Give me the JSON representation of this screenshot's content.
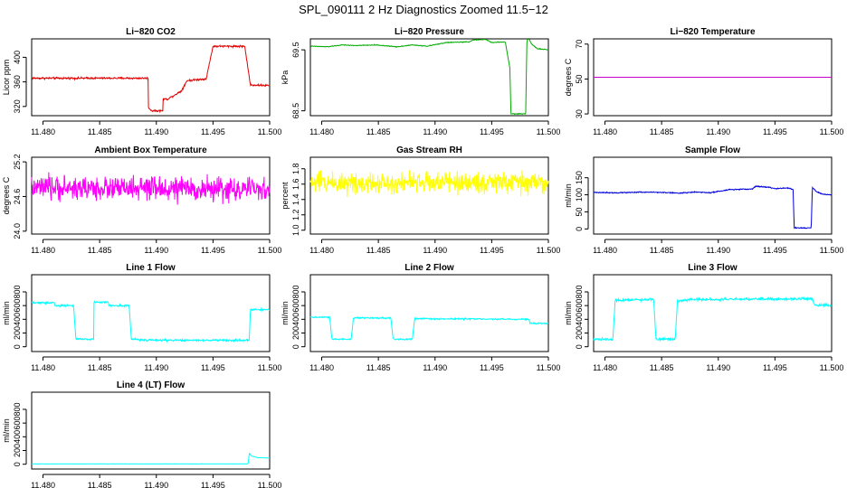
{
  "title": "SPL_090111  2 Hz Diagnostics Zoomed 11.5−12",
  "chart_data": [
    {
      "type": "line",
      "title": "Li−820 CO2",
      "ylabel": "Licor ppm",
      "xlim": [
        11.479,
        11.5
      ],
      "ylim": [
        305,
        430
      ],
      "x_ticks": [
        11.48,
        11.485,
        11.49,
        11.495,
        11.5
      ],
      "x_tick_labels": [
        "11.480",
        "11.485",
        "11.490",
        "11.495",
        "11.500"
      ],
      "y_ticks": [
        320,
        360,
        400
      ],
      "y_tick_labels": [
        "320",
        "360",
        "400"
      ],
      "color": "#e00000",
      "series": [
        {
          "x": [
            11.479,
            11.4893,
            11.4893,
            11.4896,
            11.4896,
            11.4906,
            11.4906,
            11.491,
            11.491,
            11.4922,
            11.4922,
            11.4927,
            11.4927,
            11.4944,
            11.4944,
            11.495,
            11.495,
            11.4978,
            11.4978,
            11.4983,
            11.4983,
            11.5
          ],
          "y": [
            366,
            366,
            318,
            313,
            313,
            313,
            332,
            332,
            332,
            345,
            345,
            362,
            362,
            365,
            365,
            418,
            418,
            418,
            418,
            355,
            355,
            354
          ]
        }
      ],
      "noise": 1.5
    },
    {
      "type": "line",
      "title": "Li−820 Pressure",
      "ylabel": "kPa",
      "xlim": [
        11.479,
        11.5
      ],
      "ylim": [
        68.42,
        69.68
      ],
      "x_ticks": [
        11.48,
        11.485,
        11.49,
        11.495,
        11.5
      ],
      "x_tick_labels": [
        "11.480",
        "11.485",
        "11.490",
        "11.495",
        "11.500"
      ],
      "y_ticks": [
        68.5,
        69.5
      ],
      "y_tick_labels": [
        "68.5",
        "69.5"
      ],
      "color": "#00aa00",
      "series": [
        {
          "x": [
            11.479,
            11.4805,
            11.4818,
            11.483,
            11.4848,
            11.4866,
            11.488,
            11.4893,
            11.491,
            11.493,
            11.4933,
            11.4945,
            11.495,
            11.4962,
            11.4966,
            11.4967,
            11.497,
            11.498,
            11.4981,
            11.4982,
            11.4985,
            11.499,
            11.5
          ],
          "y": [
            69.56,
            69.55,
            69.58,
            69.57,
            69.58,
            69.55,
            69.58,
            69.56,
            69.62,
            69.63,
            69.66,
            69.67,
            69.62,
            69.63,
            69.2,
            68.45,
            68.45,
            68.45,
            69.62,
            69.72,
            69.6,
            69.52,
            69.5
          ]
        }
      ],
      "noise": 0.006
    },
    {
      "type": "line",
      "title": "Li−820 Temperature",
      "ylabel": "degrees C",
      "xlim": [
        11.479,
        11.5
      ],
      "ylim": [
        29,
        73
      ],
      "x_ticks": [
        11.48,
        11.485,
        11.49,
        11.495,
        11.5
      ],
      "x_tick_labels": [
        "11.480",
        "11.485",
        "11.490",
        "11.495",
        "11.500"
      ],
      "y_ticks": [
        30,
        50,
        70
      ],
      "y_tick_labels": [
        "30",
        "50",
        "70"
      ],
      "color": "#cc00cc",
      "series": [
        {
          "x": [
            11.479,
            11.5
          ],
          "y": [
            51,
            51
          ]
        }
      ],
      "noise": 0
    },
    {
      "type": "line",
      "title": "Ambient Box Temperature",
      "ylabel": "degrees C",
      "xlim": [
        11.479,
        11.5
      ],
      "ylim": [
        23.95,
        25.28
      ],
      "x_ticks": [
        11.48,
        11.485,
        11.49,
        11.495,
        11.5
      ],
      "x_tick_labels": [
        "11.480",
        "11.485",
        "11.490",
        "11.495",
        "11.500"
      ],
      "y_ticks": [
        24.0,
        24.6,
        25.2
      ],
      "y_tick_labels": [
        "24.0",
        "24.6",
        "25.2"
      ],
      "color": "#ff00ff",
      "series": [
        {
          "x": [
            11.479,
            11.5
          ],
          "y": [
            24.75,
            24.72
          ]
        }
      ],
      "noise": 0.2
    },
    {
      "type": "line",
      "title": "Gas Stream RH",
      "ylabel": "percent",
      "xlim": [
        11.479,
        11.5
      ],
      "ylim": [
        0.95,
        1.95
      ],
      "x_ticks": [
        11.48,
        11.485,
        11.49,
        11.495,
        11.5
      ],
      "x_tick_labels": [
        "11.480",
        "11.485",
        "11.490",
        "11.495",
        "11.500"
      ],
      "y_ticks": [
        1.0,
        1.2,
        1.4,
        1.6,
        1.8
      ],
      "y_tick_labels": [
        "1.0",
        "1.2",
        "1.4",
        "1.6",
        "1.8"
      ],
      "color": "#ffff00",
      "series": [
        {
          "x": [
            11.479,
            11.5
          ],
          "y": [
            1.62,
            1.62
          ]
        }
      ],
      "noise": 0.14
    },
    {
      "type": "line",
      "title": "Sample Flow",
      "ylabel": "ml/min",
      "xlim": [
        11.479,
        11.5
      ],
      "ylim": [
        -15,
        210
      ],
      "x_ticks": [
        11.48,
        11.485,
        11.49,
        11.495,
        11.5
      ],
      "x_tick_labels": [
        "11.480",
        "11.485",
        "11.490",
        "11.495",
        "11.500"
      ],
      "y_ticks": [
        0,
        50,
        100,
        150
      ],
      "y_tick_labels": [
        "0",
        "50",
        "100",
        "150"
      ],
      "color": "#0000dd",
      "series": [
        {
          "x": [
            11.479,
            11.4812,
            11.4832,
            11.485,
            11.4866,
            11.488,
            11.4893,
            11.491,
            11.493,
            11.4933,
            11.4945,
            11.495,
            11.4962,
            11.4966,
            11.4967,
            11.4982,
            11.4983,
            11.4987,
            11.4992,
            11.5
          ],
          "y": [
            107,
            106,
            108,
            107,
            105,
            108,
            106,
            115,
            117,
            125,
            122,
            118,
            120,
            115,
            3,
            3,
            122,
            108,
            102,
            100
          ]
        }
      ],
      "noise": 1.5
    },
    {
      "type": "line",
      "title": "Line 1 Flow",
      "ylabel": "ml/min",
      "xlim": [
        11.479,
        11.5
      ],
      "ylim": [
        -70,
        1050
      ],
      "x_ticks": [
        11.48,
        11.485,
        11.49,
        11.495,
        11.5
      ],
      "x_tick_labels": [
        "11.480",
        "11.485",
        "11.490",
        "11.495",
        "11.500"
      ],
      "y_ticks": [
        0,
        200,
        400,
        600,
        800
      ],
      "y_tick_labels": [
        "0",
        "200",
        "400",
        "600",
        "800"
      ],
      "color": "#00ffff",
      "series": [
        {
          "x": [
            11.479,
            11.481,
            11.481,
            11.4827,
            11.4829,
            11.4845,
            11.4845,
            11.4858,
            11.4858,
            11.4876,
            11.4878,
            11.4895,
            11.49,
            11.4982,
            11.4983,
            11.5
          ],
          "y": [
            640,
            640,
            600,
            600,
            110,
            110,
            650,
            650,
            600,
            600,
            110,
            95,
            95,
            95,
            540,
            540
          ]
        }
      ],
      "noise": 14
    },
    {
      "type": "line",
      "title": "Line 2 Flow",
      "ylabel": "ml/min",
      "xlim": [
        11.479,
        11.5
      ],
      "ylim": [
        -70,
        1050
      ],
      "x_ticks": [
        11.48,
        11.485,
        11.49,
        11.495,
        11.5
      ],
      "x_tick_labels": [
        "11.480",
        "11.485",
        "11.490",
        "11.495",
        "11.500"
      ],
      "y_ticks": [
        0,
        200,
        400,
        600,
        800
      ],
      "y_tick_labels": [
        "0",
        "200",
        "400",
        "600",
        "800"
      ],
      "color": "#00ffff",
      "series": [
        {
          "x": [
            11.479,
            11.4807,
            11.4809,
            11.4826,
            11.4828,
            11.4861,
            11.4863,
            11.488,
            11.4882,
            11.4983,
            11.4984,
            11.5
          ],
          "y": [
            430,
            430,
            110,
            110,
            420,
            420,
            110,
            110,
            410,
            400,
            340,
            340
          ]
        }
      ],
      "noise": 10
    },
    {
      "type": "line",
      "title": "Line 3 Flow",
      "ylabel": "ml/min",
      "xlim": [
        11.479,
        11.5
      ],
      "ylim": [
        -70,
        1050
      ],
      "x_ticks": [
        11.48,
        11.485,
        11.49,
        11.495,
        11.5
      ],
      "x_tick_labels": [
        "11.480",
        "11.485",
        "11.490",
        "11.495",
        "11.500"
      ],
      "y_ticks": [
        0,
        200,
        400,
        600,
        800
      ],
      "y_tick_labels": [
        "0",
        "200",
        "400",
        "600",
        "800"
      ],
      "color": "#00ffff",
      "series": [
        {
          "x": [
            11.479,
            11.4807,
            11.4809,
            11.4843,
            11.4845,
            11.4862,
            11.4864,
            11.488,
            11.4983,
            11.4985,
            11.5
          ],
          "y": [
            110,
            110,
            680,
            690,
            110,
            110,
            670,
            690,
            700,
            610,
            600
          ]
        }
      ],
      "noise": 18
    },
    {
      "type": "line",
      "title": "Line 4 (LT) Flow",
      "ylabel": "ml/min",
      "xlim": [
        11.479,
        11.5
      ],
      "ylim": [
        -70,
        1050
      ],
      "x_ticks": [
        11.48,
        11.485,
        11.49,
        11.495,
        11.5
      ],
      "x_tick_labels": [
        "11.480",
        "11.485",
        "11.490",
        "11.495",
        "11.500"
      ],
      "y_ticks": [
        0,
        200,
        400,
        600,
        800
      ],
      "y_tick_labels": [
        "0",
        "200",
        "400",
        "600",
        "800"
      ],
      "color": "#00ffff",
      "series": [
        {
          "x": [
            11.479,
            11.4981,
            11.4982,
            11.4984,
            11.499,
            11.5
          ],
          "y": [
            5,
            5,
            160,
            120,
            95,
            90
          ]
        }
      ],
      "noise": 2
    }
  ]
}
